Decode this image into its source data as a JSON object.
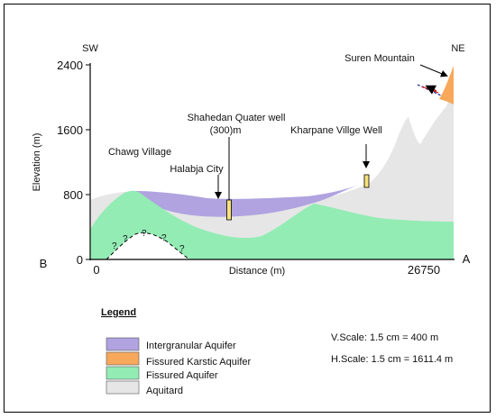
{
  "section": {
    "sw_label": "SW",
    "ne_label": "NE",
    "start_label": "B",
    "end_label": "A",
    "y_axis_label": "Elevation (m)",
    "x_axis_label": "Distance (m)",
    "y_ticks": [
      "2400",
      "1600",
      "800",
      "0"
    ],
    "x_ticks": [
      "0",
      "26750"
    ],
    "unknown_marks": [
      "?",
      "?",
      "?",
      "?",
      "?"
    ]
  },
  "annotations": {
    "suren_mountain": "Suren Mountain",
    "shahedan_well_line1": "Shahedan Quater well",
    "shahedan_well_line2": "(300)m",
    "kharpane_well": "Kharpane Villge Well",
    "chawg_village": "Chawg Village",
    "halabja_city": "Halabja City"
  },
  "legend": {
    "title": "Legend",
    "items": [
      {
        "label": "Intergranular Aquifer",
        "color": "#b0a3e0"
      },
      {
        "label": "Fissured Karstic Aquifer",
        "color": "#f7a85a"
      },
      {
        "label": "Fissured Aquifer",
        "color": "#93ecb4"
      },
      {
        "label": "Aquitard",
        "color": "#e6e6e6"
      }
    ]
  },
  "scale": {
    "vertical": "V.Scale: 1.5 cm = 400 m",
    "horizontal": "H.Scale: 1.5 cm = 1611.4 m"
  }
}
